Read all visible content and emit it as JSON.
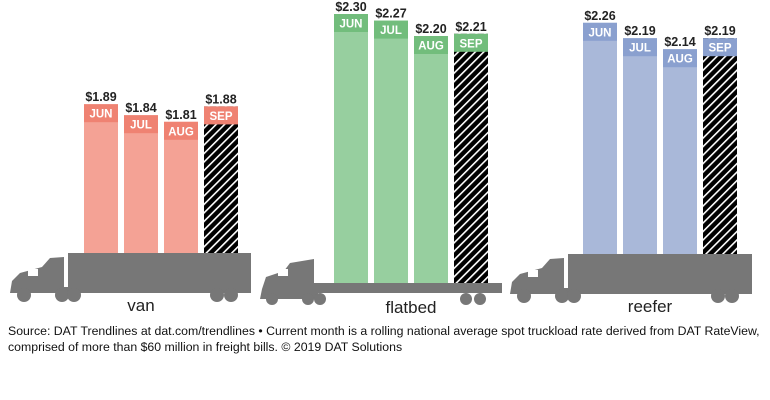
{
  "chart_data": {
    "type": "bar",
    "categories": [
      "JUN",
      "JUL",
      "AUG",
      "SEP"
    ],
    "hatched_category": "SEP",
    "series": [
      {
        "name": "van",
        "values": [
          1.89,
          1.84,
          1.81,
          1.88
        ],
        "labels": [
          "$1.89",
          "$1.84",
          "$1.81",
          "$1.88"
        ],
        "color": "#f4a295",
        "header_color": "#ef8272",
        "truck": "van"
      },
      {
        "name": "flatbed",
        "values": [
          2.3,
          2.27,
          2.2,
          2.21
        ],
        "labels": [
          "$2.30",
          "$2.27",
          "$2.20",
          "$2.21"
        ],
        "color": "#97cf9f",
        "header_color": "#72bd7c",
        "truck": "flatbed"
      },
      {
        "name": "reefer",
        "values": [
          2.26,
          2.19,
          2.14,
          2.19
        ],
        "labels": [
          "$2.26",
          "$2.19",
          "$2.14",
          "$2.19"
        ],
        "color": "#a9b8d9",
        "header_color": "#8aa0cf",
        "truck": "van"
      }
    ],
    "truck_color": "#777777",
    "units": "$ per mile"
  },
  "source": "Source: DAT Trendlines at dat.com/trendlines • Current month is a rolling national average spot truckload rate derived from DAT RateView, comprised of more than $60 million in freight bills. © 2019 DAT Solutions"
}
